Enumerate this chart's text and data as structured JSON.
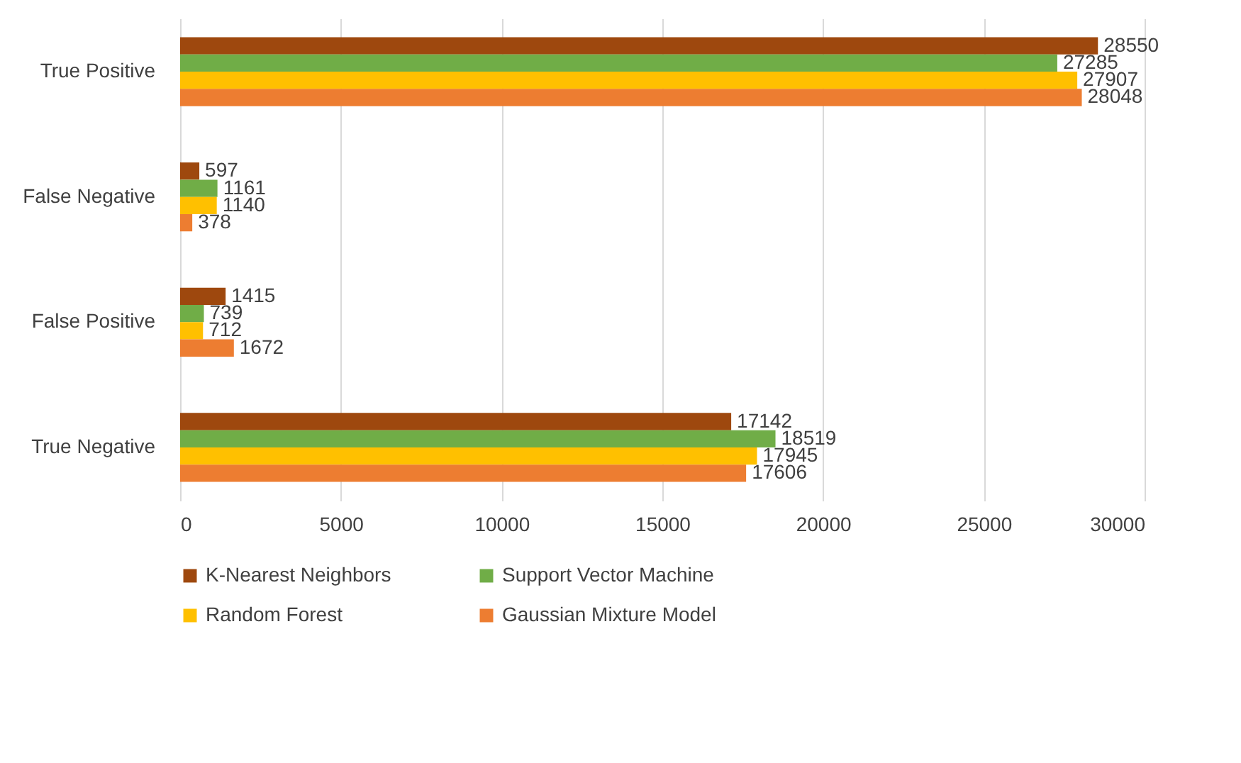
{
  "chart_data": {
    "type": "bar",
    "orientation": "horizontal",
    "categories": [
      "True Positive",
      "False Negative",
      "False Positive",
      "True Negative"
    ],
    "series": [
      {
        "name": "K-Nearest Neighbors",
        "color": "#9e480e",
        "values": [
          28550,
          597,
          1415,
          17142
        ]
      },
      {
        "name": "Support Vector Machine",
        "color": "#70ad47",
        "values": [
          27285,
          1161,
          739,
          18519
        ]
      },
      {
        "name": "Random Forest",
        "color": "#ffc000",
        "values": [
          27907,
          1140,
          712,
          17945
        ]
      },
      {
        "name": "Gaussian Mixture Model",
        "color": "#ed7d31",
        "values": [
          28048,
          378,
          1672,
          17606
        ]
      }
    ],
    "xlim": [
      0,
      30000
    ],
    "xticks": [
      0,
      5000,
      10000,
      15000,
      20000,
      25000,
      30000
    ],
    "grid": "x",
    "legend": "bottom",
    "data_labels": true
  }
}
